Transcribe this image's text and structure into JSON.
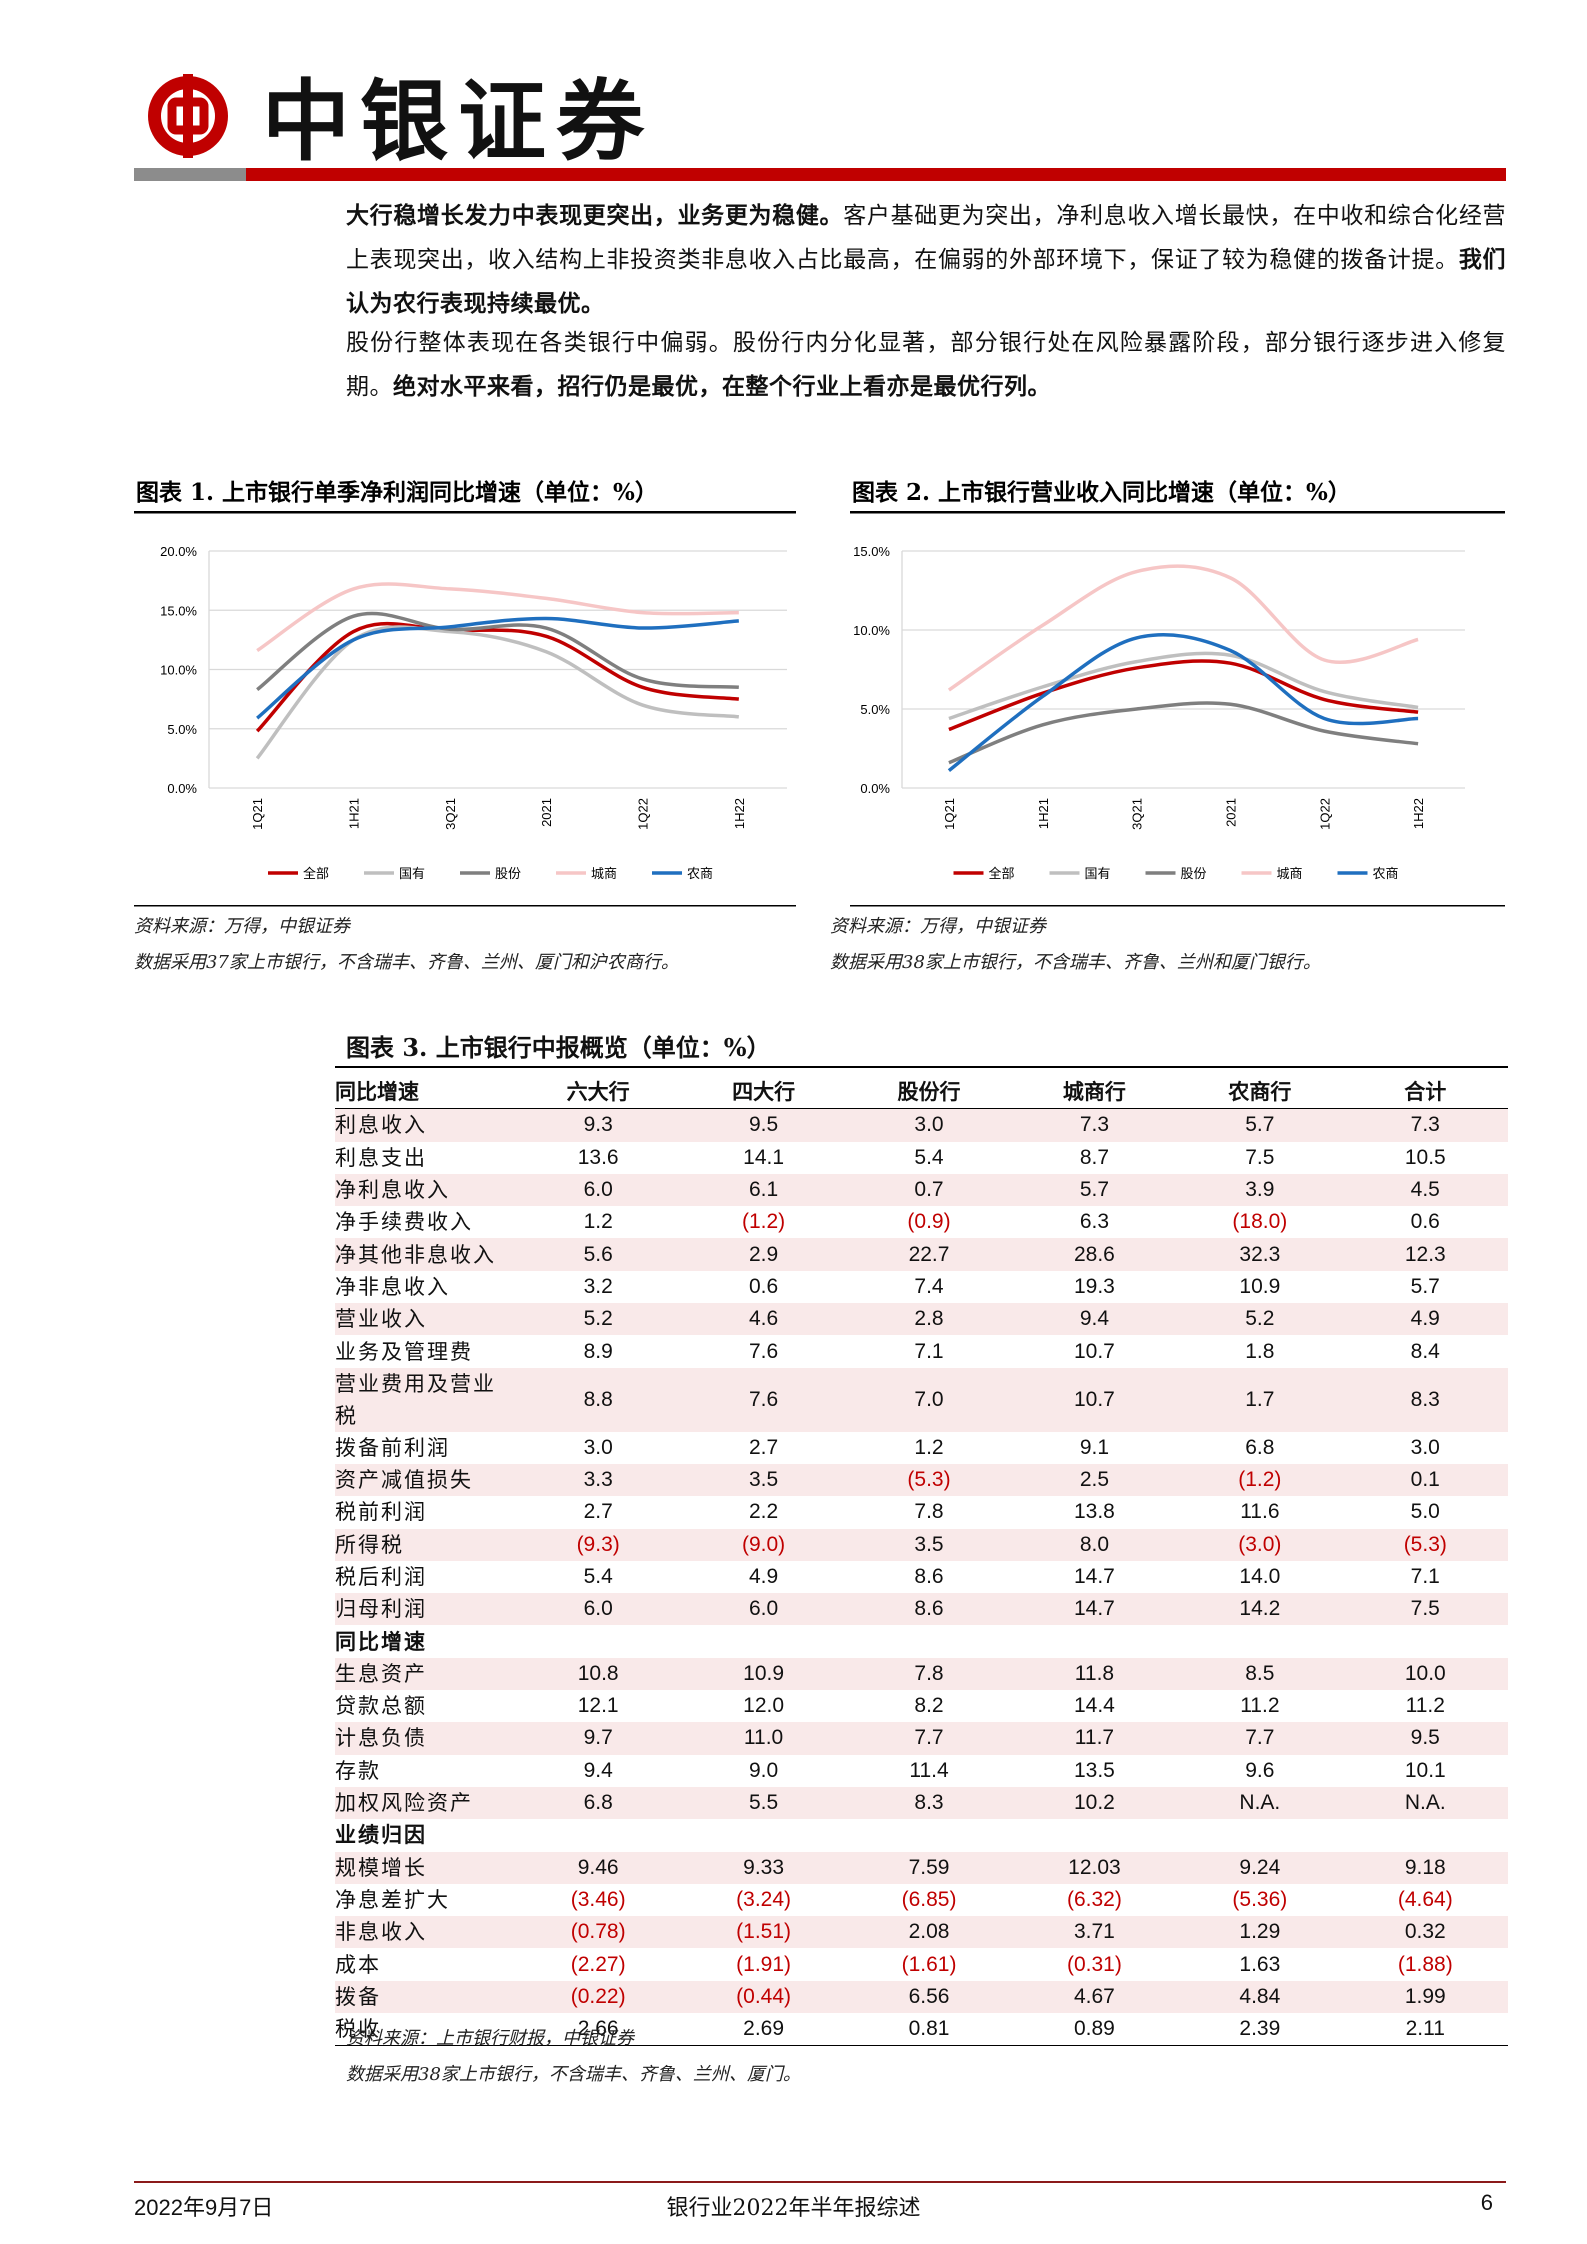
{
  "header": {
    "logo_text": "中银证券"
  },
  "paragraphs": [
    {
      "runs": [
        {
          "text": "大行稳增长发力中表现更突出，业务更为稳健。",
          "bold": true
        },
        {
          "text": "客户基础更为突出，净利息收入增长最快，在中收和综合化经营上表现突出，收入结构上非投资类非息收入占比最高，在偏弱的外部环境下，保证了较为稳健的拨备计提。",
          "bold": false
        },
        {
          "text": "我们认为农行表现持续最优。",
          "bold": true
        }
      ]
    },
    {
      "runs": [
        {
          "text": "股份行整体表现在各类银行中偏弱。股份行内分化显著，部分银行处在风险暴露阶段，部分银行逐步进入修复期。",
          "bold": false
        },
        {
          "text": "绝对水平来看，招行仍是最优，在整个行业上看亦是最优行列。",
          "bold": true
        }
      ]
    }
  ],
  "chart_data": [
    {
      "type": "line",
      "title": "图表 1. 上市银行单季净利润同比增速（单位：%）",
      "categories": [
        "1Q21",
        "1H21",
        "3Q21",
        "2021",
        "1Q22",
        "1H22"
      ],
      "ylim": [
        0,
        20
      ],
      "yticks": [
        {
          "value": 0,
          "label": "0.0%"
        },
        {
          "value": 5,
          "label": "5.0%"
        },
        {
          "value": 10,
          "label": "10.0%"
        },
        {
          "value": 15,
          "label": "15.0%"
        },
        {
          "value": 20,
          "label": "20.0%"
        }
      ],
      "grid": true,
      "legend": "bottom",
      "series": [
        {
          "name": "全部",
          "color": "#c00000",
          "values": [
            4.8,
            13.2,
            13.3,
            12.8,
            8.5,
            7.5
          ]
        },
        {
          "name": "国有",
          "color": "#bfbfbf",
          "values": [
            2.5,
            12.5,
            13.2,
            11.5,
            7.0,
            6.0
          ]
        },
        {
          "name": "股份",
          "color": "#7f7f7f",
          "values": [
            8.3,
            14.5,
            13.4,
            13.5,
            9.2,
            8.5
          ]
        },
        {
          "name": "城商",
          "color": "#f6c6c6",
          "values": [
            11.6,
            16.8,
            16.8,
            16.0,
            14.8,
            14.8
          ]
        },
        {
          "name": "农商",
          "color": "#1f6fbf",
          "values": [
            5.9,
            12.5,
            13.6,
            14.3,
            13.5,
            14.1
          ]
        }
      ],
      "source": "资料来源：万得，中银证券",
      "note": "数据采用37家上市银行，不含瑞丰、齐鲁、兰州、厦门和沪农商行。"
    },
    {
      "type": "line",
      "title": "图表 2. 上市银行营业收入同比增速（单位：%）",
      "categories": [
        "1Q21",
        "1H21",
        "3Q21",
        "2021",
        "1Q22",
        "1H22"
      ],
      "ylim": [
        0,
        15
      ],
      "yticks": [
        {
          "value": 0,
          "label": "0.0%"
        },
        {
          "value": 5,
          "label": "5.0%"
        },
        {
          "value": 10,
          "label": "10.0%"
        },
        {
          "value": 15,
          "label": "15.0%"
        }
      ],
      "grid": true,
      "legend": "bottom",
      "series": [
        {
          "name": "全部",
          "color": "#c00000",
          "values": [
            3.7,
            6.0,
            7.6,
            7.9,
            5.6,
            4.8
          ]
        },
        {
          "name": "国有",
          "color": "#bfbfbf",
          "values": [
            4.4,
            6.4,
            8.0,
            8.4,
            6.1,
            5.1
          ]
        },
        {
          "name": "股份",
          "color": "#7f7f7f",
          "values": [
            1.6,
            4.0,
            5.0,
            5.3,
            3.6,
            2.8
          ]
        },
        {
          "name": "城商",
          "color": "#f6c6c6",
          "values": [
            6.2,
            10.3,
            13.7,
            13.3,
            8.1,
            9.4
          ]
        },
        {
          "name": "农商",
          "color": "#1f6fbf",
          "values": [
            1.1,
            5.8,
            9.5,
            8.7,
            4.4,
            4.4
          ]
        }
      ],
      "source": "资料来源：万得，中银证券",
      "note": "数据采用38家上市银行，不含瑞丰、齐鲁、兰州和厦门银行。"
    }
  ],
  "table": {
    "title": "图表 3. 上市银行中报概览（单位：%）",
    "columns": [
      "同比增速",
      "六大行",
      "四大行",
      "股份行",
      "城商行",
      "农商行",
      "合计"
    ],
    "rows": [
      [
        "利息收入",
        "9.3",
        "9.5",
        "3.0",
        "7.3",
        "5.7",
        "7.3"
      ],
      [
        "利息支出",
        "13.6",
        "14.1",
        "5.4",
        "8.7",
        "7.5",
        "10.5"
      ],
      [
        "净利息收入",
        "6.0",
        "6.1",
        "0.7",
        "5.7",
        "3.9",
        "4.5"
      ],
      [
        "净手续费收入",
        "1.2",
        "(1.2)",
        "(0.9)",
        "6.3",
        "(18.0)",
        "0.6"
      ],
      [
        "净其他非息收入",
        "5.6",
        "2.9",
        "22.7",
        "28.6",
        "32.3",
        "12.3"
      ],
      [
        "净非息收入",
        "3.2",
        "0.6",
        "7.4",
        "19.3",
        "10.9",
        "5.7"
      ],
      [
        "营业收入",
        "5.2",
        "4.6",
        "2.8",
        "9.4",
        "5.2",
        "4.9"
      ],
      [
        "业务及管理费",
        "8.9",
        "7.6",
        "7.1",
        "10.7",
        "1.8",
        "8.4"
      ],
      [
        "营业费用及营业税",
        "8.8",
        "7.6",
        "7.0",
        "10.7",
        "1.7",
        "8.3"
      ],
      [
        "拨备前利润",
        "3.0",
        "2.7",
        "1.2",
        "9.1",
        "6.8",
        "3.0"
      ],
      [
        "资产减值损失",
        "3.3",
        "3.5",
        "(5.3)",
        "2.5",
        "(1.2)",
        "0.1"
      ],
      [
        "税前利润",
        "2.7",
        "2.2",
        "7.8",
        "13.8",
        "11.6",
        "5.0"
      ],
      [
        "所得税",
        "(9.3)",
        "(9.0)",
        "3.5",
        "8.0",
        "(3.0)",
        "(5.3)"
      ],
      [
        "税后利润",
        "5.4",
        "4.9",
        "8.6",
        "14.7",
        "14.0",
        "7.1"
      ],
      [
        "归母利润",
        "6.0",
        "6.0",
        "8.6",
        "14.7",
        "14.2",
        "7.5"
      ],
      [
        "同比增速"
      ],
      [
        "生息资产",
        "10.8",
        "10.9",
        "7.8",
        "11.8",
        "8.5",
        "10.0"
      ],
      [
        "贷款总额",
        "12.1",
        "12.0",
        "8.2",
        "14.4",
        "11.2",
        "11.2"
      ],
      [
        "计息负债",
        "9.7",
        "11.0",
        "7.7",
        "11.7",
        "7.7",
        "9.5"
      ],
      [
        "存款",
        "9.4",
        "9.0",
        "11.4",
        "13.5",
        "9.6",
        "10.1"
      ],
      [
        "加权风险资产",
        "6.8",
        "5.5",
        "8.3",
        "10.2",
        "N.A.",
        "N.A."
      ],
      [
        "业绩归因"
      ],
      [
        "规模增长",
        "9.46",
        "9.33",
        "7.59",
        "12.03",
        "9.24",
        "9.18"
      ],
      [
        "净息差扩大",
        "(3.46)",
        "(3.24)",
        "(6.85)",
        "(6.32)",
        "(5.36)",
        "(4.64)"
      ],
      [
        "非息收入",
        "(0.78)",
        "(1.51)",
        "2.08",
        "3.71",
        "1.29",
        "0.32"
      ],
      [
        "成本",
        "(2.27)",
        "(1.91)",
        "(1.61)",
        "(0.31)",
        "1.63",
        "(1.88)"
      ],
      [
        "拨备",
        "(0.22)",
        "(0.44)",
        "6.56",
        "4.67",
        "4.84",
        "1.99"
      ],
      [
        "税收",
        "2.66",
        "2.69",
        "0.81",
        "0.89",
        "2.39",
        "2.11"
      ]
    ],
    "source": "资料来源：上市银行财报，中银证券",
    "note": "数据采用38家上市银行，不含瑞丰、齐鲁、兰州、厦门。"
  },
  "footer": {
    "date": "2022年9月7日",
    "report": "银行业2022年半年报综述",
    "page": "6"
  }
}
